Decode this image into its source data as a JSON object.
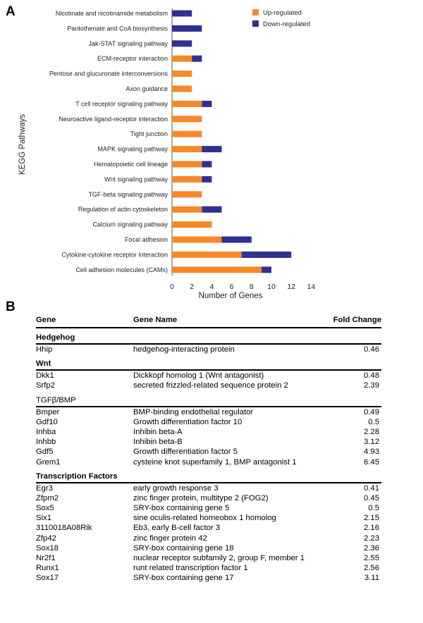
{
  "panels": {
    "a": "A",
    "b": "B"
  },
  "chart_data": {
    "type": "bar",
    "orientation": "horizontal",
    "stacked": true,
    "title": "",
    "xlabel": "Number of Genes",
    "ylabel": "KEGG Pathways",
    "xlim": [
      0,
      14
    ],
    "xticks": [
      0,
      2,
      4,
      6,
      8,
      10,
      12,
      14
    ],
    "grid": false,
    "legend_position": "top-right",
    "categories": [
      "Nicotinate and nicotinamide metabolism",
      "Pantothenate and CoA biosynthesis",
      "Jak-STAT signaling pathway",
      "ECM-receptor interaction",
      "Pentose and glucuronate interconversions",
      "Axon guidance",
      "T cell receptor signaling pathway",
      "Neuroactive ligand-receptor interaction",
      "Tight junction",
      "MAPK signaling pathway",
      "Hematopoietic cell lineage",
      "Wnt signaling pathway",
      "TGF-beta signaling pathway",
      "Regulation of actin cytoskeleton",
      "Calcium signaling pathway",
      "Focal adhesion",
      "Cytokine-cytokine receptor interaction",
      "Cell adhesion molecules (CAMs)"
    ],
    "series": [
      {
        "name": "Up-regulated",
        "color": "#f7882a",
        "values": [
          0,
          0,
          0,
          2,
          2,
          2,
          3,
          3,
          3,
          3,
          3,
          3,
          3,
          3,
          4,
          5,
          7,
          9
        ]
      },
      {
        "name": "Down-regulated",
        "color": "#2e3192",
        "values": [
          2,
          3,
          2,
          1,
          0,
          0,
          1,
          0,
          0,
          2,
          1,
          1,
          0,
          2,
          0,
          3,
          5,
          1
        ]
      }
    ]
  },
  "table": {
    "headers": {
      "gene": "Gene",
      "name": "Gene Name",
      "fold": "Fold Change"
    },
    "groups": [
      {
        "title": "Hedgehog",
        "bold": true,
        "rows": [
          {
            "gene": "Hhip",
            "name": "hedgehog-interacting protein",
            "fold": "0.46"
          }
        ]
      },
      {
        "title": "Wnt",
        "bold": true,
        "rows": [
          {
            "gene": "Dkk1",
            "name": "Dickkopf homolog 1 (Wnt antagonist)",
            "fold": "0.48"
          },
          {
            "gene": "Srfp2",
            "name": "secreted frizzled-related sequence protein 2",
            "fold": "2.39"
          }
        ]
      },
      {
        "title": "TGFβ/BMP",
        "bold": false,
        "rows": [
          {
            "gene": "Bmper",
            "name": "BMP-binding endothelial regulator",
            "fold": "0.49"
          },
          {
            "gene": "Gdf10",
            "name": "Growth differentiation factor 10",
            "fold": "0.5"
          },
          {
            "gene": "Inhba",
            "name": "Inhibin beta-A",
            "fold": "2.28"
          },
          {
            "gene": "Inhbb",
            "name": "Inhibin beta-B",
            "fold": "3.12"
          },
          {
            "gene": "Gdf5",
            "name": "Growth differentiation factor 5",
            "fold": "4.93"
          },
          {
            "gene": "Grem1",
            "name": "cysteine knot superfamily 1, BMP antagonist 1",
            "fold": "6.45"
          }
        ]
      },
      {
        "title": "Transcription Factors",
        "bold": true,
        "rows": [
          {
            "gene": "Egr3",
            "name": "early growth response 3",
            "fold": "0.41"
          },
          {
            "gene": "Zfpm2",
            "name": "zinc finger protein, multitype 2 (FOG2)",
            "fold": "0.45"
          },
          {
            "gene": "Sox5",
            "name": "SRY-box containing gene 5",
            "fold": "0.5"
          },
          {
            "gene": "Six1",
            "name": "sine oculis-related homeobox 1 homolog",
            "fold": "2.15"
          },
          {
            "gene": "3110018A08Rik",
            "name": "Eb3, early B-cell factor 3",
            "fold": "2.16"
          },
          {
            "gene": "Zfp42",
            "name": "zinc finger protein 42",
            "fold": "2.23"
          },
          {
            "gene": "Sox18",
            "name": "SRY-box containing gene 18",
            "fold": "2.36"
          },
          {
            "gene": "Nr2f1",
            "name": "nuclear receptor subfamily 2, group F, member 1",
            "fold": "2.55"
          },
          {
            "gene": "Runx1",
            "name": "runt related transcription factor 1",
            "fold": "2.56"
          },
          {
            "gene": "Sox17",
            "name": "SRY-box containing gene 17",
            "fold": "3.11"
          }
        ]
      }
    ]
  }
}
